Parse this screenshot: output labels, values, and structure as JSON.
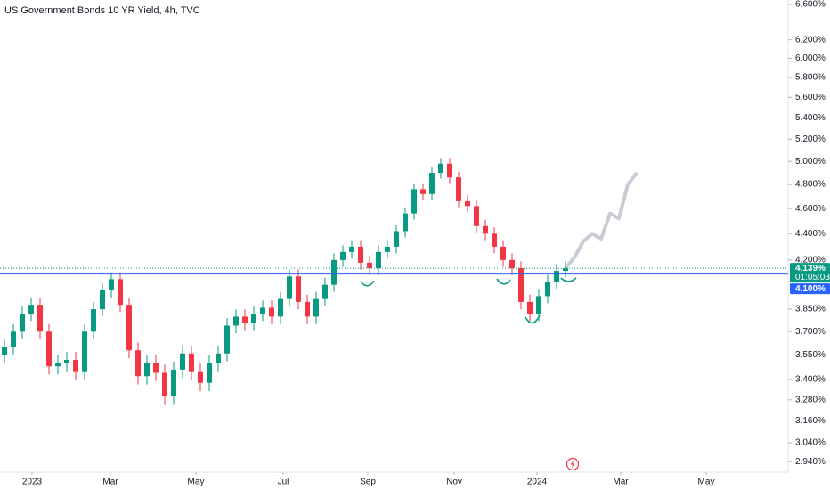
{
  "chart_data": {
    "type": "candlestick",
    "title": "US Government Bonds 10 YR Yield, 4h, TVC",
    "open": [
      3.55,
      3.6,
      3.7,
      3.82,
      3.88,
      3.7,
      3.48,
      3.5,
      3.52,
      3.45,
      3.7,
      3.85,
      3.98,
      4.06,
      3.88,
      3.58,
      3.42,
      3.5,
      3.44,
      3.3,
      3.46,
      3.56,
      3.45,
      3.38,
      3.5,
      3.56,
      3.74,
      3.8,
      3.76,
      3.82,
      3.86,
      3.8,
      3.92,
      4.08,
      3.9,
      3.8,
      3.92,
      4.02,
      4.2,
      4.26,
      4.3,
      4.18,
      4.14,
      4.26,
      4.3,
      4.42,
      4.56,
      4.76,
      4.72,
      4.9,
      4.98,
      4.86,
      4.66,
      4.62,
      4.46,
      4.4,
      4.3,
      4.2,
      4.14,
      3.9,
      3.82,
      3.94,
      4.04,
      4.12
    ],
    "high": [
      3.65,
      3.75,
      3.87,
      3.93,
      3.93,
      3.75,
      3.55,
      3.57,
      3.57,
      3.75,
      3.9,
      4.03,
      4.11,
      4.11,
      3.93,
      3.63,
      3.55,
      3.55,
      3.49,
      3.51,
      3.61,
      3.61,
      3.5,
      3.55,
      3.61,
      3.79,
      3.85,
      3.85,
      3.87,
      3.91,
      3.91,
      3.97,
      4.13,
      4.13,
      3.95,
      3.97,
      4.07,
      4.25,
      4.31,
      4.35,
      4.35,
      4.23,
      4.31,
      4.35,
      4.47,
      4.61,
      4.81,
      4.81,
      4.95,
      5.03,
      5.03,
      4.91,
      4.71,
      4.67,
      4.51,
      4.45,
      4.35,
      4.25,
      4.19,
      3.95,
      3.99,
      4.09,
      4.17,
      4.19
    ],
    "low": [
      3.5,
      3.55,
      3.65,
      3.77,
      3.65,
      3.43,
      3.43,
      3.45,
      3.4,
      3.4,
      3.65,
      3.8,
      3.93,
      3.83,
      3.53,
      3.37,
      3.37,
      3.39,
      3.25,
      3.25,
      3.41,
      3.4,
      3.33,
      3.33,
      3.45,
      3.51,
      3.69,
      3.71,
      3.71,
      3.77,
      3.75,
      3.75,
      3.87,
      3.85,
      3.75,
      3.75,
      3.87,
      3.97,
      4.15,
      4.21,
      4.13,
      4.09,
      4.09,
      4.21,
      4.25,
      4.37,
      4.51,
      4.67,
      4.67,
      4.85,
      4.81,
      4.61,
      4.57,
      4.41,
      4.35,
      4.25,
      4.15,
      4.09,
      3.85,
      3.77,
      3.77,
      3.89,
      3.99,
      4.07
    ],
    "close": [
      3.6,
      3.7,
      3.82,
      3.88,
      3.7,
      3.48,
      3.5,
      3.52,
      3.45,
      3.7,
      3.85,
      3.98,
      4.06,
      3.88,
      3.58,
      3.42,
      3.5,
      3.44,
      3.3,
      3.46,
      3.56,
      3.45,
      3.38,
      3.5,
      3.56,
      3.74,
      3.8,
      3.76,
      3.82,
      3.86,
      3.8,
      3.92,
      4.08,
      3.9,
      3.8,
      3.92,
      4.02,
      4.2,
      4.26,
      4.3,
      4.18,
      4.14,
      4.26,
      4.3,
      4.42,
      4.56,
      4.76,
      4.72,
      4.9,
      4.98,
      4.86,
      4.66,
      4.62,
      4.46,
      4.4,
      4.3,
      4.2,
      4.14,
      3.9,
      3.82,
      3.94,
      4.04,
      4.12,
      4.139
    ],
    "up_color": "#089981",
    "down_color": "#f23645",
    "projection": {
      "color": "#c9ccd4",
      "x": [
        63,
        64,
        65,
        66,
        67,
        68,
        69,
        70,
        71
      ],
      "values": [
        4.139,
        4.22,
        4.34,
        4.4,
        4.36,
        4.56,
        4.52,
        4.8,
        4.9
      ]
    },
    "level": {
      "value": 4.1,
      "label": "4.100%",
      "color": "#2962ff"
    },
    "current_price": {
      "value": 4.139,
      "label": "4.139%",
      "color": "#089981"
    },
    "countdown": "01:05:03",
    "log_scale": true,
    "xlim": [
      -0.5,
      88
    ],
    "ylim": [
      2.886,
      6.652
    ],
    "xticks": [
      {
        "value": 3.1,
        "label": "2023"
      },
      {
        "value": 11.9,
        "label": "Mar"
      },
      {
        "value": 21.5,
        "label": "May"
      },
      {
        "value": 31.3,
        "label": "Jul"
      },
      {
        "value": 40.8,
        "label": "Sep"
      },
      {
        "value": 50.5,
        "label": "Nov"
      },
      {
        "value": 59.8,
        "label": "2024"
      },
      {
        "value": 69.2,
        "label": "Mar"
      },
      {
        "value": 78.8,
        "label": "May"
      }
    ],
    "yticks": [
      {
        "value": 2.94,
        "label": "2.940%"
      },
      {
        "value": 3.04,
        "label": "3.040%"
      },
      {
        "value": 3.16,
        "label": "3.160%"
      },
      {
        "value": 3.28,
        "label": "3.280%"
      },
      {
        "value": 3.4,
        "label": "3.400%"
      },
      {
        "value": 3.55,
        "label": "3.550%"
      },
      {
        "value": 3.7,
        "label": "3.700%"
      },
      {
        "value": 3.85,
        "label": "3.850%"
      },
      {
        "value": 4.2,
        "label": "4.200%"
      },
      {
        "value": 4.4,
        "label": "4.400%"
      },
      {
        "value": 4.6,
        "label": "4.600%"
      },
      {
        "value": 4.8,
        "label": "4.800%"
      },
      {
        "value": 5.0,
        "label": "5.000%"
      },
      {
        "value": 5.2,
        "label": "5.200%"
      },
      {
        "value": 5.4,
        "label": "5.400%"
      },
      {
        "value": 5.6,
        "label": "5.600%"
      },
      {
        "value": 5.8,
        "label": "5.800%"
      },
      {
        "value": 6.0,
        "label": "6.000%"
      },
      {
        "value": 6.2,
        "label": "6.200%"
      },
      {
        "value": 6.6,
        "label": "6.600%"
      }
    ]
  }
}
